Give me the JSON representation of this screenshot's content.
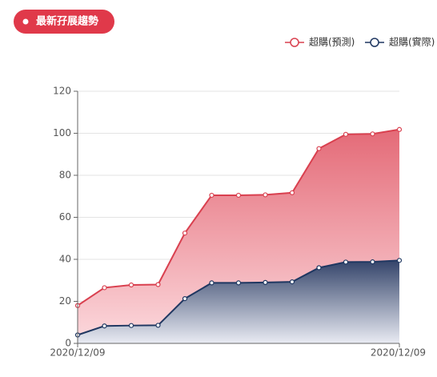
{
  "chart_data": {
    "type": "area",
    "title": "最新孖展趨勢",
    "categories": [
      "2020/12/09",
      null,
      null,
      null,
      null,
      null,
      null,
      null,
      null,
      null,
      null,
      null,
      "2020/12/09"
    ],
    "series": [
      {
        "name": "超購(預測)",
        "color": "#d9404f",
        "values": [
          18,
          26.5,
          27.8,
          28,
          52.5,
          70.5,
          70.5,
          70.7,
          71.7,
          92.7,
          99.5,
          99.7,
          101.8
        ]
      },
      {
        "name": "超購(實際)",
        "color": "#1f3761",
        "values": [
          4,
          8.3,
          8.5,
          8.6,
          21.3,
          28.8,
          28.8,
          29,
          29.3,
          36,
          38.7,
          38.8,
          39.5
        ]
      }
    ],
    "ylim": [
      0,
      120
    ],
    "yticks": [
      0,
      20,
      40,
      60,
      80,
      100,
      120
    ],
    "grid": true,
    "legend": "top-right"
  }
}
